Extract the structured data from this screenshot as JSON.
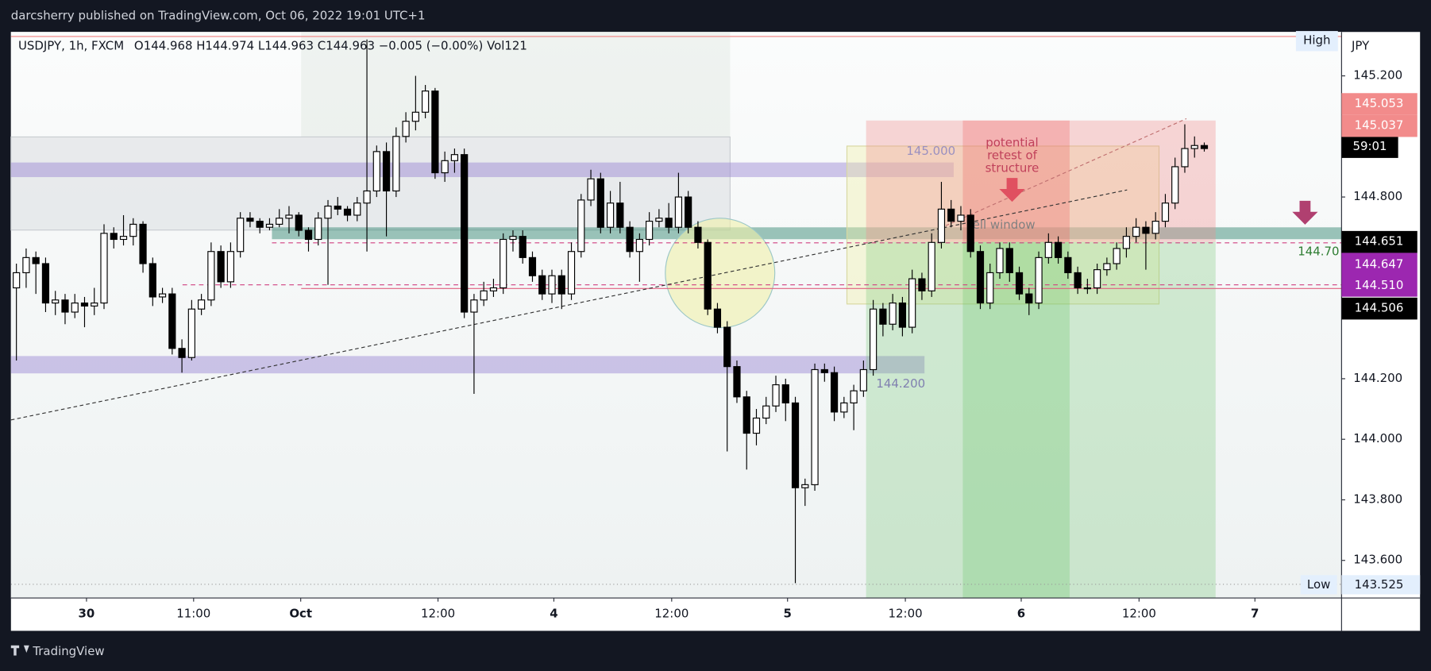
{
  "header": "darcsherry published on TradingView.com, Oct 06, 2022 19:01 UTC+1",
  "footer": "TradingView",
  "chart_data": {
    "type": "candlestick",
    "symbol": "USDJPY, 1h, FXCM",
    "legend": "O144.968 H144.974 L144.963 C144.963 −0.005 (−0.00%) Vol121",
    "axis_label": "JPY",
    "up_color": "#ffffff",
    "down_color": "#000000",
    "xlim": [
      -0.56,
      136.1
    ],
    "xticks": [
      {
        "value": 7.2,
        "label": "30"
      },
      {
        "value": 18.2,
        "label": "11:00"
      },
      {
        "value": 29.2,
        "label": "Oct"
      },
      {
        "value": 43.3,
        "label": "12:00"
      },
      {
        "value": 55.2,
        "label": "4"
      },
      {
        "value": 67.3,
        "label": "12:00"
      },
      {
        "value": 79.2,
        "label": "5"
      },
      {
        "value": 91.3,
        "label": "12:00"
      },
      {
        "value": 103.2,
        "label": "6"
      },
      {
        "value": 115.3,
        "label": "12:00"
      },
      {
        "value": 127.2,
        "label": "7"
      }
    ],
    "ylim": [
      143.476,
      145.345
    ],
    "yticks": [
      {
        "value": 145.2,
        "label": "145.200"
      },
      {
        "value": 144.8,
        "label": "144.800"
      },
      {
        "value": 144.2,
        "label": "144.200"
      },
      {
        "value": 144.0,
        "label": "144.000"
      },
      {
        "value": 143.8,
        "label": "143.800"
      },
      {
        "value": 143.6,
        "label": "143.600"
      }
    ],
    "price_labels": [
      "High",
      "145.053",
      "145.037",
      "59:01",
      "144.651",
      "144.647",
      "144.510",
      "144.506",
      "Low",
      "143.525"
    ],
    "annotations": [
      "145.000",
      "144.200",
      "potential",
      "retest of",
      "structure",
      "ell window",
      "144.70"
    ],
    "ohlc": [
      [
        144.5,
        144.58,
        144.26,
        144.55
      ],
      [
        144.55,
        144.63,
        144.5,
        144.6
      ],
      [
        144.6,
        144.62,
        144.48,
        144.58
      ],
      [
        144.58,
        144.6,
        144.42,
        144.45
      ],
      [
        144.45,
        144.49,
        144.41,
        144.46
      ],
      [
        144.46,
        144.48,
        144.38,
        144.42
      ],
      [
        144.42,
        144.48,
        144.4,
        144.45
      ],
      [
        144.45,
        144.47,
        144.37,
        144.44
      ],
      [
        144.44,
        144.5,
        144.41,
        144.45
      ],
      [
        144.45,
        144.71,
        144.43,
        144.68
      ],
      [
        144.68,
        144.7,
        144.63,
        144.66
      ],
      [
        144.66,
        144.74,
        144.64,
        144.67
      ],
      [
        144.67,
        144.73,
        144.64,
        144.71
      ],
      [
        144.71,
        144.72,
        144.55,
        144.58
      ],
      [
        144.58,
        144.6,
        144.44,
        144.47
      ],
      [
        144.47,
        144.5,
        144.45,
        144.48
      ],
      [
        144.48,
        144.5,
        144.28,
        144.3
      ],
      [
        144.3,
        144.33,
        144.22,
        144.27
      ],
      [
        144.27,
        144.46,
        144.26,
        144.43
      ],
      [
        144.43,
        144.48,
        144.41,
        144.46
      ],
      [
        144.46,
        144.65,
        144.44,
        144.62
      ],
      [
        144.62,
        144.64,
        144.5,
        144.52
      ],
      [
        144.52,
        144.65,
        144.5,
        144.62
      ],
      [
        144.62,
        144.75,
        144.6,
        144.73
      ],
      [
        144.73,
        144.75,
        144.7,
        144.72
      ],
      [
        144.72,
        144.73,
        144.68,
        144.7
      ],
      [
        144.7,
        144.73,
        144.69,
        144.71
      ],
      [
        144.71,
        144.76,
        144.7,
        144.73
      ],
      [
        144.73,
        144.77,
        144.68,
        144.74
      ],
      [
        144.74,
        144.75,
        144.67,
        144.69
      ],
      [
        144.69,
        144.7,
        144.62,
        144.66
      ],
      [
        144.66,
        144.75,
        144.64,
        144.73
      ],
      [
        144.73,
        144.79,
        144.51,
        144.77
      ],
      [
        144.77,
        144.8,
        144.74,
        144.76
      ],
      [
        144.76,
        144.77,
        144.72,
        144.74
      ],
      [
        144.74,
        144.8,
        144.72,
        144.78
      ],
      [
        144.78,
        145.32,
        144.62,
        144.82
      ],
      [
        144.82,
        144.97,
        144.8,
        144.95
      ],
      [
        144.95,
        144.98,
        144.67,
        144.82
      ],
      [
        144.82,
        145.03,
        144.8,
        145.0
      ],
      [
        145.0,
        145.08,
        144.98,
        145.05
      ],
      [
        145.05,
        145.2,
        145.02,
        145.08
      ],
      [
        145.08,
        145.17,
        145.06,
        145.15
      ],
      [
        145.15,
        145.16,
        144.86,
        144.88
      ],
      [
        144.88,
        144.95,
        144.85,
        144.92
      ],
      [
        144.92,
        144.96,
        144.88,
        144.94
      ],
      [
        144.94,
        144.96,
        144.4,
        144.42
      ],
      [
        144.42,
        144.48,
        144.15,
        144.46
      ],
      [
        144.46,
        144.52,
        144.44,
        144.49
      ],
      [
        144.49,
        144.53,
        144.47,
        144.5
      ],
      [
        144.5,
        144.68,
        144.48,
        144.66
      ],
      [
        144.66,
        144.69,
        144.62,
        144.67
      ],
      [
        144.67,
        144.69,
        144.58,
        144.6
      ],
      [
        144.6,
        144.62,
        144.52,
        144.54
      ],
      [
        144.54,
        144.56,
        144.46,
        144.48
      ],
      [
        144.48,
        144.56,
        144.45,
        144.54
      ],
      [
        144.54,
        144.56,
        144.43,
        144.48
      ],
      [
        144.48,
        144.65,
        144.46,
        144.62
      ],
      [
        144.62,
        144.81,
        144.6,
        144.79
      ],
      [
        144.79,
        144.89,
        144.77,
        144.86
      ],
      [
        144.86,
        144.88,
        144.68,
        144.7
      ],
      [
        144.7,
        144.82,
        144.68,
        144.78
      ],
      [
        144.78,
        144.85,
        144.68,
        144.7
      ],
      [
        144.7,
        144.72,
        144.6,
        144.62
      ],
      [
        144.62,
        144.68,
        144.52,
        144.66
      ],
      [
        144.66,
        144.75,
        144.64,
        144.72
      ],
      [
        144.72,
        144.76,
        144.7,
        144.73
      ],
      [
        144.73,
        144.78,
        144.68,
        144.7
      ],
      [
        144.7,
        144.88,
        144.68,
        144.8
      ],
      [
        144.8,
        144.82,
        144.68,
        144.7
      ],
      [
        144.7,
        144.72,
        144.63,
        144.65
      ],
      [
        144.65,
        144.66,
        144.41,
        144.43
      ],
      [
        144.43,
        144.45,
        144.35,
        144.37
      ],
      [
        144.37,
        144.39,
        143.96,
        144.24
      ],
      [
        144.24,
        144.26,
        144.12,
        144.14
      ],
      [
        144.14,
        144.16,
        143.9,
        144.02
      ],
      [
        144.02,
        144.1,
        143.98,
        144.07
      ],
      [
        144.07,
        144.14,
        144.05,
        144.11
      ],
      [
        144.11,
        144.21,
        144.09,
        144.18
      ],
      [
        144.18,
        144.2,
        144.06,
        144.12
      ],
      [
        144.12,
        144.14,
        143.525,
        143.84
      ],
      [
        143.84,
        143.87,
        143.78,
        143.85
      ],
      [
        143.85,
        144.25,
        143.83,
        144.23
      ],
      [
        144.23,
        144.25,
        144.19,
        144.22
      ],
      [
        144.22,
        144.24,
        144.06,
        144.09
      ],
      [
        144.09,
        144.14,
        144.07,
        144.12
      ],
      [
        144.12,
        144.18,
        144.03,
        144.16
      ],
      [
        144.16,
        144.26,
        144.14,
        144.23
      ],
      [
        144.23,
        144.46,
        144.21,
        144.43
      ],
      [
        144.43,
        144.45,
        144.34,
        144.38
      ],
      [
        144.38,
        144.48,
        144.36,
        144.45
      ],
      [
        144.45,
        144.47,
        144.34,
        144.37
      ],
      [
        144.37,
        144.56,
        144.35,
        144.53
      ],
      [
        144.53,
        144.55,
        144.46,
        144.49
      ],
      [
        144.49,
        144.68,
        144.47,
        144.65
      ],
      [
        144.65,
        144.85,
        144.63,
        144.76
      ],
      [
        144.76,
        144.79,
        144.7,
        144.72
      ],
      [
        144.72,
        144.77,
        144.69,
        144.74
      ],
      [
        144.74,
        144.76,
        144.6,
        144.62
      ],
      [
        144.62,
        144.64,
        144.43,
        144.45
      ],
      [
        144.45,
        144.58,
        144.43,
        144.55
      ],
      [
        144.55,
        144.65,
        144.53,
        144.63
      ],
      [
        144.63,
        144.65,
        144.52,
        144.55
      ],
      [
        144.55,
        144.57,
        144.46,
        144.48
      ],
      [
        144.48,
        144.5,
        144.41,
        144.45
      ],
      [
        144.45,
        144.62,
        144.43,
        144.6
      ],
      [
        144.6,
        144.68,
        144.58,
        144.65
      ],
      [
        144.65,
        144.67,
        144.58,
        144.6
      ],
      [
        144.6,
        144.62,
        144.53,
        144.55
      ],
      [
        144.55,
        144.57,
        144.48,
        144.5
      ],
      [
        144.5,
        144.53,
        144.48,
        144.5
      ],
      [
        144.5,
        144.58,
        144.48,
        144.56
      ],
      [
        144.56,
        144.6,
        144.54,
        144.58
      ],
      [
        144.58,
        144.65,
        144.56,
        144.63
      ],
      [
        144.63,
        144.7,
        144.6,
        144.67
      ],
      [
        144.67,
        144.73,
        144.65,
        144.7
      ],
      [
        144.7,
        144.72,
        144.56,
        144.68
      ],
      [
        144.68,
        144.75,
        144.66,
        144.72
      ],
      [
        144.72,
        144.81,
        144.7,
        144.78
      ],
      [
        144.78,
        144.93,
        144.76,
        144.9
      ],
      [
        144.9,
        145.04,
        144.88,
        144.96
      ],
      [
        144.96,
        145.0,
        144.93,
        144.97
      ],
      [
        144.97,
        144.98,
        144.95,
        144.96
      ]
    ]
  }
}
